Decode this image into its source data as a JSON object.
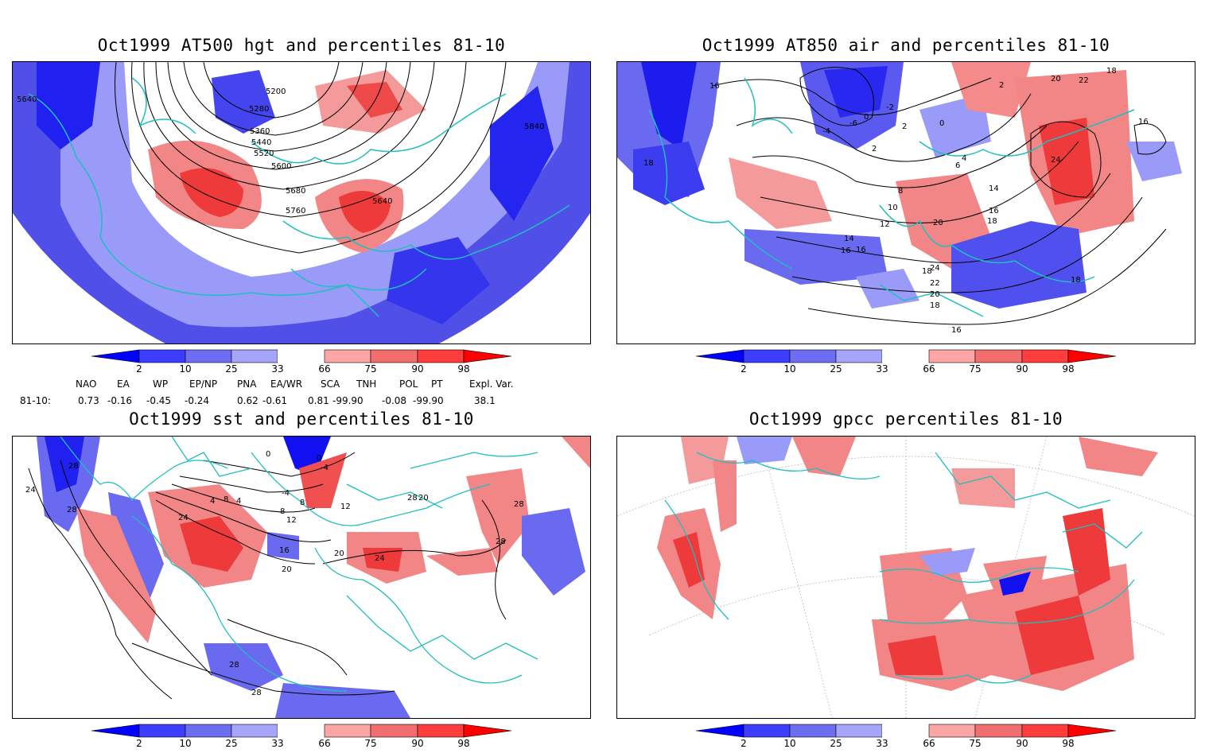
{
  "panels": [
    {
      "title": "Oct1999 AT500 hgt and percentiles 81-10",
      "contour_labels": [
        "5200",
        "5280",
        "5360",
        "5440",
        "5520",
        "5600",
        "5680",
        "5760",
        "5640",
        "5840",
        "5640"
      ]
    },
    {
      "title": "Oct1999 AT850 air and percentiles 81-10",
      "contour_labels": [
        "16",
        "18",
        "-4",
        "-6",
        "0",
        "-2",
        "2",
        "2",
        "0",
        "2",
        "4",
        "6",
        "8",
        "10",
        "12",
        "14",
        "16",
        "18",
        "20",
        "22",
        "24",
        "18",
        "16",
        "20",
        "16",
        "14",
        "16",
        "18",
        "20",
        "22",
        "24",
        "18",
        "16",
        "18"
      ]
    },
    {
      "title": "Oct1999 sst and percentiles 81-10",
      "contour_labels": [
        "28",
        "24",
        "28",
        "0",
        "0",
        "-4",
        "4",
        "8",
        "-4",
        "8",
        "4",
        "8",
        "12",
        "12",
        "24",
        "16",
        "20",
        "20",
        "24",
        "28",
        "28",
        "28",
        "28",
        "28",
        "20"
      ]
    },
    {
      "title": "Oct1999 gpcc percentiles 81-10",
      "contour_labels": []
    }
  ],
  "colorbar": {
    "ticks": [
      "2",
      "10",
      "25",
      "33",
      "66",
      "75",
      "90",
      "98"
    ],
    "colors": [
      "#0000ff",
      "#3d3dff",
      "#6d6df2",
      "#a5a5fb",
      "#ffffff",
      "#fba5a5",
      "#f26d6d",
      "#ff3d3d",
      "#ff0000"
    ]
  },
  "indices": {
    "headers": [
      "NAO",
      "EA",
      "WP",
      "EP/NP",
      "PNA",
      "EA/WR",
      "SCA",
      "TNH",
      "POL",
      "PT",
      "Expl. Var."
    ],
    "row_label": "81-10:",
    "values": [
      "0.73",
      "-0.16",
      "-0.45",
      "-0.24",
      "0.62",
      "-0.61",
      "0.81",
      "-99.90",
      "-0.08",
      "-99.90",
      "38.1"
    ]
  },
  "map_colors": {
    "coast": "#1fbfbf",
    "blue": "#4a4af0",
    "red": "#f04848"
  }
}
